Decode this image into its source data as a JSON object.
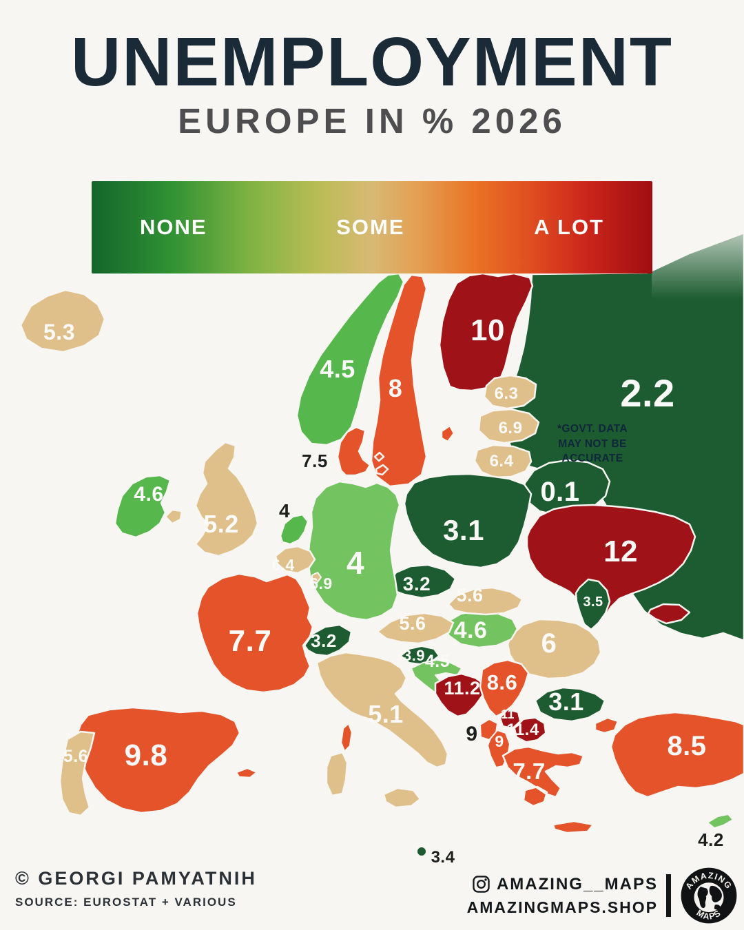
{
  "title": "UNEMPLOYMENT",
  "subtitle": "EUROPE IN % 2026",
  "legend": {
    "labels": [
      "NONE",
      "SOME",
      "A LOT"
    ]
  },
  "note": {
    "lines": [
      "*GOVT. DATA",
      "MAY NOT BE",
      "ACCURATE"
    ]
  },
  "palette": {
    "background": "#f7f6f3",
    "tan": "#dfc08a",
    "green": "#56b74c",
    "green2": "#74c361",
    "dark_green": "#1c5c30",
    "orange": "#e4532a",
    "dark_red": "#9f1318",
    "label_light": "#fbfaf8",
    "label_dark": "#1d1f1e",
    "title_color": "#1b2a37"
  },
  "countries": [
    {
      "id": "russia",
      "value": "2.2",
      "fill": "dark_green",
      "label": "light"
    },
    {
      "id": "iceland",
      "value": "5.3",
      "fill": "tan",
      "label": "light"
    },
    {
      "id": "norway",
      "value": "4.5",
      "fill": "green",
      "label": "light"
    },
    {
      "id": "sweden",
      "value": "8",
      "fill": "orange",
      "label": "light"
    },
    {
      "id": "finland",
      "value": "10",
      "fill": "dark_red",
      "label": "light"
    },
    {
      "id": "estonia",
      "value": "6.3",
      "fill": "tan",
      "label": "light"
    },
    {
      "id": "latvia",
      "value": "6.9",
      "fill": "tan",
      "label": "light"
    },
    {
      "id": "lithuania",
      "value": "6.4",
      "fill": "tan",
      "label": "light"
    },
    {
      "id": "belarus",
      "value": "0.1",
      "fill": "dark_green",
      "label": "light"
    },
    {
      "id": "poland",
      "value": "3.1",
      "fill": "dark_green",
      "label": "light"
    },
    {
      "id": "ukraine",
      "value": "12",
      "fill": "dark_red",
      "label": "light"
    },
    {
      "id": "moldova",
      "value": "3.5",
      "fill": "dark_green",
      "label": "light"
    },
    {
      "id": "romania",
      "value": "6",
      "fill": "tan",
      "label": "light"
    },
    {
      "id": "hungary",
      "value": "4.6",
      "fill": "green2",
      "label": "light"
    },
    {
      "id": "slovakia",
      "value": "5.6",
      "fill": "tan",
      "label": "light"
    },
    {
      "id": "austria",
      "value": "5.6",
      "fill": "tan",
      "label": "light"
    },
    {
      "id": "czechia",
      "value": "3.2",
      "fill": "dark_green",
      "label": "light"
    },
    {
      "id": "germany",
      "value": "4",
      "fill": "green2",
      "label": "light"
    },
    {
      "id": "denmark",
      "value": "7.5",
      "fill": "orange",
      "label": "dark"
    },
    {
      "id": "netherlands",
      "value": "4",
      "fill": "green",
      "label": "dark"
    },
    {
      "id": "belgium",
      "value": "6.4",
      "fill": "tan",
      "label": "light"
    },
    {
      "id": "luxembourg",
      "value": "6.9",
      "fill": "tan",
      "label": "light"
    },
    {
      "id": "switzerland",
      "value": "3.2",
      "fill": "dark_green",
      "label": "light"
    },
    {
      "id": "france",
      "value": "7.7",
      "fill": "orange",
      "label": "light"
    },
    {
      "id": "spain",
      "value": "9.8",
      "fill": "orange",
      "label": "light"
    },
    {
      "id": "portugal",
      "value": "5.6",
      "fill": "tan",
      "label": "light"
    },
    {
      "id": "uk",
      "value": "5.2",
      "fill": "tan",
      "label": "light"
    },
    {
      "id": "ireland",
      "value": "4.6",
      "fill": "green",
      "label": "light"
    },
    {
      "id": "italy",
      "value": "5.1",
      "fill": "tan",
      "label": "light"
    },
    {
      "id": "slovenia",
      "value": "3.9",
      "fill": "dark_green",
      "label": "light"
    },
    {
      "id": "croatia",
      "value": "4.5",
      "fill": "green2",
      "label": "light"
    },
    {
      "id": "bosnia",
      "value": "11.2",
      "fill": "dark_red",
      "label": "light"
    },
    {
      "id": "serbia",
      "value": "8.6",
      "fill": "orange",
      "label": "light"
    },
    {
      "id": "montenegro",
      "value": "9",
      "fill": "orange",
      "label": "dark"
    },
    {
      "id": "kosovo",
      "value": "11",
      "fill": "dark_red",
      "label": "light"
    },
    {
      "id": "nmacedonia",
      "value": "11.4",
      "fill": "dark_red",
      "label": "light"
    },
    {
      "id": "albania",
      "value": "9",
      "fill": "orange",
      "label": "light"
    },
    {
      "id": "greece",
      "value": "7.7",
      "fill": "orange",
      "label": "light"
    },
    {
      "id": "bulgaria",
      "value": "3.1",
      "fill": "dark_green",
      "label": "light"
    },
    {
      "id": "turkey",
      "value": "8.5",
      "fill": "orange",
      "label": "light"
    },
    {
      "id": "cyprus",
      "value": "4.2",
      "fill": "green2",
      "label": "dark"
    },
    {
      "id": "malta",
      "value": "3.4",
      "fill": "dark_green",
      "label": "dark"
    }
  ],
  "footer": {
    "credit": "© GEORGI PAMYATNIH",
    "source": "SOURCE: EUROSTAT + VARIOUS",
    "instagram": "AMAZING__MAPS",
    "website": "AMAZINGMAPS.SHOP",
    "logo": {
      "top": "AMAZING",
      "bottom": "MAPS"
    }
  }
}
